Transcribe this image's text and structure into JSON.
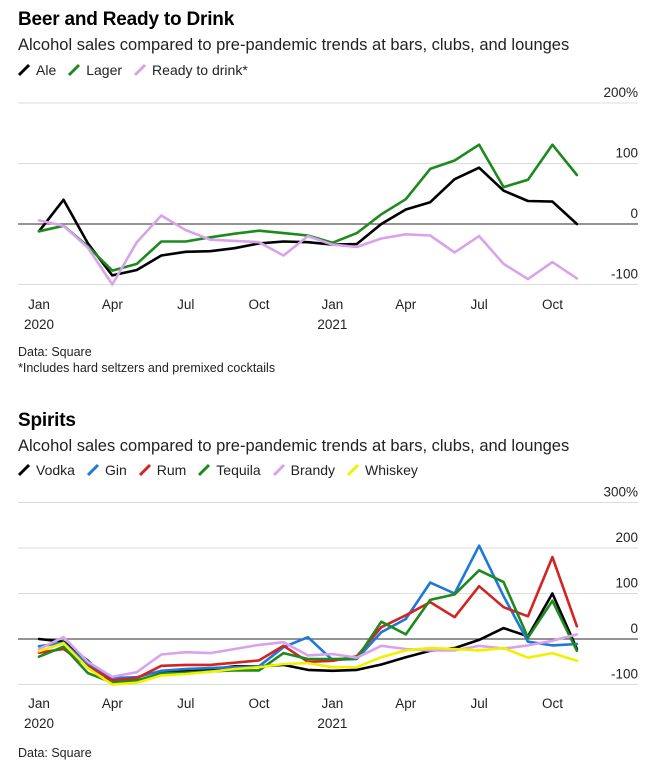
{
  "chart_data": [
    {
      "type": "line",
      "title": "Beer and Ready to Drink",
      "subtitle": "Alcohol sales compared to pre-pandemic trends at bars, clubs, and lounges",
      "x": [
        "2020-01",
        "2020-02",
        "2020-03",
        "2020-04",
        "2020-05",
        "2020-06",
        "2020-07",
        "2020-08",
        "2020-09",
        "2020-10",
        "2020-11",
        "2020-12",
        "2021-01",
        "2021-02",
        "2021-03",
        "2021-04",
        "2021-05",
        "2021-06",
        "2021-07",
        "2021-08",
        "2021-09",
        "2021-10",
        "2021-11"
      ],
      "x_tick_labels": [
        "Jan",
        "Apr",
        "Jul",
        "Oct",
        "Jan",
        "Apr",
        "Jul",
        "Oct"
      ],
      "year_labels": [
        "2020",
        "2021"
      ],
      "y_tick_labels": [
        "200%",
        "100",
        "0",
        "-100"
      ],
      "ylim": [
        -100,
        200
      ],
      "series": [
        {
          "name": "Ale",
          "color": "#000000",
          "values": [
            -12,
            40,
            -32,
            -85,
            -76,
            -52,
            -46,
            -45,
            -40,
            -32,
            -29,
            -30,
            -34,
            -33,
            0,
            24,
            36,
            74,
            93,
            55,
            38,
            37,
            0
          ]
        },
        {
          "name": "Lager",
          "color": "#1e8a1e",
          "values": [
            -12,
            -3,
            -37,
            -77,
            -66,
            -29,
            -29,
            -22,
            -16,
            -11,
            -15,
            -19,
            -31,
            -15,
            16,
            41,
            91,
            105,
            131,
            61,
            73,
            131,
            81
          ]
        },
        {
          "name": "Ready to drink*",
          "color": "#d9a3ec",
          "values": [
            6,
            -3,
            -39,
            -100,
            -30,
            14,
            -10,
            -26,
            -28,
            -30,
            -52,
            -20,
            -34,
            -38,
            -24,
            -17,
            -19,
            -47,
            -20,
            -66,
            -91,
            -63,
            -90
          ]
        }
      ],
      "source": "Data: Square",
      "footnote": "*Includes hard seltzers and premixed cocktails"
    },
    {
      "type": "line",
      "title": "Spirits",
      "subtitle": "Alcohol sales compared to pre-pandemic trends at bars, clubs, and lounges",
      "x": [
        "2020-01",
        "2020-02",
        "2020-03",
        "2020-04",
        "2020-05",
        "2020-06",
        "2020-07",
        "2020-08",
        "2020-09",
        "2020-10",
        "2020-11",
        "2020-12",
        "2021-01",
        "2021-02",
        "2021-03",
        "2021-04",
        "2021-05",
        "2021-06",
        "2021-07",
        "2021-08",
        "2021-09",
        "2021-10",
        "2021-11"
      ],
      "x_tick_labels": [
        "Jan",
        "Apr",
        "Jul",
        "Oct",
        "Jan",
        "Apr",
        "Jul",
        "Oct"
      ],
      "year_labels": [
        "2020",
        "2021"
      ],
      "y_tick_labels": [
        "300%",
        "200",
        "100",
        "0",
        "-100"
      ],
      "ylim": [
        -100,
        300
      ],
      "series": [
        {
          "name": "Vodka",
          "color": "#000000",
          "values": [
            0,
            -6,
            -48,
            -97,
            -93,
            -75,
            -71,
            -67,
            -60,
            -60,
            -57,
            -68,
            -70,
            -68,
            -56,
            -40,
            -26,
            -20,
            -2,
            24,
            6,
            100,
            -22
          ]
        },
        {
          "name": "Gin",
          "color": "#1e78d8",
          "values": [
            -16,
            -8,
            -57,
            -86,
            -84,
            -70,
            -66,
            -64,
            -62,
            -60,
            -18,
            4,
            -46,
            -44,
            15,
            44,
            124,
            100,
            205,
            94,
            -6,
            -14,
            -11
          ]
        },
        {
          "name": "Rum",
          "color": "#d42323",
          "values": [
            -30,
            -22,
            -60,
            -91,
            -86,
            -59,
            -57,
            -57,
            -52,
            -47,
            -15,
            -50,
            -48,
            -38,
            26,
            52,
            81,
            48,
            116,
            70,
            50,
            180,
            28
          ]
        },
        {
          "name": "Tequila",
          "color": "#1e8a1e",
          "values": [
            -39,
            -17,
            -75,
            -96,
            -91,
            -76,
            -74,
            -71,
            -69,
            -69,
            -31,
            -44,
            -44,
            -43,
            38,
            10,
            86,
            98,
            151,
            125,
            3,
            84,
            -26
          ]
        },
        {
          "name": "Brandy",
          "color": "#d9a3ec",
          "values": [
            -22,
            4,
            -50,
            -83,
            -73,
            -34,
            -29,
            -31,
            -22,
            -13,
            -7,
            -36,
            -33,
            -41,
            -15,
            -22,
            -25,
            -25,
            -15,
            -21,
            -14,
            -4,
            10
          ]
        },
        {
          "name": "Whiskey",
          "color": "#f0f000",
          "values": [
            -27,
            -9,
            -64,
            -100,
            -96,
            -80,
            -77,
            -72,
            -66,
            -62,
            -55,
            -53,
            -62,
            -62,
            -40,
            -25,
            -20,
            -22,
            -25,
            -20,
            -41,
            -31,
            -48
          ]
        }
      ],
      "source": "Data: Square"
    }
  ]
}
